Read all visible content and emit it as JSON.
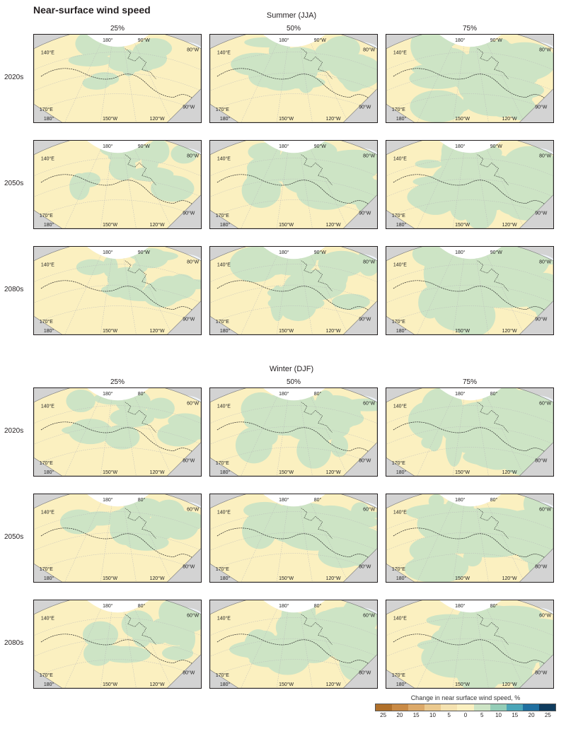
{
  "title": "Near-surface wind speed",
  "seasons": [
    {
      "name": "Summer (JJA)"
    },
    {
      "name": "Winter (DJF)"
    }
  ],
  "percentiles": [
    "25%",
    "50%",
    "75%"
  ],
  "decades": [
    "2020s",
    "2050s",
    "2080s"
  ],
  "map_labels": {
    "summer": [
      "140°E",
      "180°",
      "90°W",
      "80°W",
      "170°E",
      "90°W",
      "180°",
      "150°W",
      "120°W"
    ],
    "winter": [
      "140°E",
      "180°",
      "80°",
      "60°W",
      "170°E",
      "80°W",
      "180°",
      "150°W",
      "120°W"
    ]
  },
  "legend": {
    "title": "Change in near surface wind speed, %",
    "ticks": [
      "25",
      "20",
      "15",
      "10",
      "5",
      "0",
      "5",
      "10",
      "15",
      "20",
      "25"
    ],
    "colors": [
      "#b0702a",
      "#c98a45",
      "#dca969",
      "#ebc98e",
      "#f5e2b0",
      "#fbf0c0",
      "#cde4c5",
      "#94cdb7",
      "#4aa5b8",
      "#1f6fa0",
      "#0f3c5e"
    ]
  },
  "colors": {
    "no_change": "#fbf0c0",
    "increase": "#cde4c5",
    "land_mask": "#d3d3d3"
  },
  "panel_green_fraction": {
    "summer": [
      [
        0.25,
        0.45,
        0.8
      ],
      [
        0.3,
        0.6,
        0.8
      ],
      [
        0.35,
        0.55,
        0.75
      ]
    ],
    "winter": [
      [
        0.25,
        0.55,
        0.92
      ],
      [
        0.35,
        0.65,
        0.9
      ],
      [
        0.4,
        0.7,
        0.9
      ]
    ]
  }
}
